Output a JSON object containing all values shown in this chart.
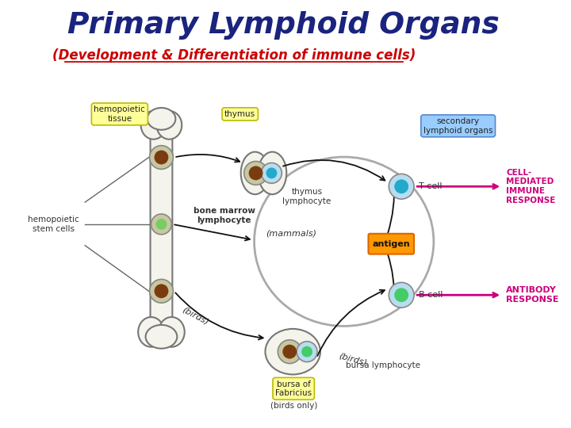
{
  "title": "Primary Lymphoid Organs",
  "subtitle": "(Development & Differentiation of immune cells)",
  "title_color": "#1a237e",
  "subtitle_color": "#cc0000",
  "bg_color": "#ffffff",
  "response_arrow_color": "#cc007a",
  "label_bg_yellow": "#ffff99",
  "label_bg_blue": "#99ccff",
  "label_edge_yellow": "#bbbb00",
  "label_edge_blue": "#5588cc",
  "bone_face": "#f4f4ec",
  "bone_edge": "#777777",
  "cell_outer": "#c8c8a0",
  "cell_brown": "#7B3B10",
  "cell_green": "#77cc66",
  "cell_cyan_outer": "#b8ddf0",
  "cell_cyan_inner": "#22aacc",
  "cell_bcell_inner": "#44cc66",
  "antigen_face": "#ff9900",
  "antigen_edge": "#dd6600",
  "oval_edge": "#aaaaaa",
  "labels": {
    "hemopoietic_tissue": "hemopoietic\ntissue",
    "thymus": "thymus",
    "secondary_lymphoid": "secondary\nlymphoid organs",
    "hemopoietic_stem": "hemopoietic\nstem cells",
    "bone_marrow_lymphocyte": "bone marrow\nlymphocyte",
    "mammals": "(mammals)",
    "birds_upper": "(birds)",
    "birds_lower": "(birds)",
    "thymus_lymphocyte": "thymus\nlymphocyte",
    "antigen": "antigen",
    "T_cell": "T cell",
    "B_cell": "B cell",
    "bursa_fabricius": "bursa of\nFabricius",
    "birds_only": "(birds only)",
    "bursa_lymphocyte": "bursa lymphocyte",
    "cell_mediated": "CELL-\nMEDIATED\nIMMUNE\nRESPONSE",
    "antibody": "ANTIBODY\nRESPONSE"
  }
}
